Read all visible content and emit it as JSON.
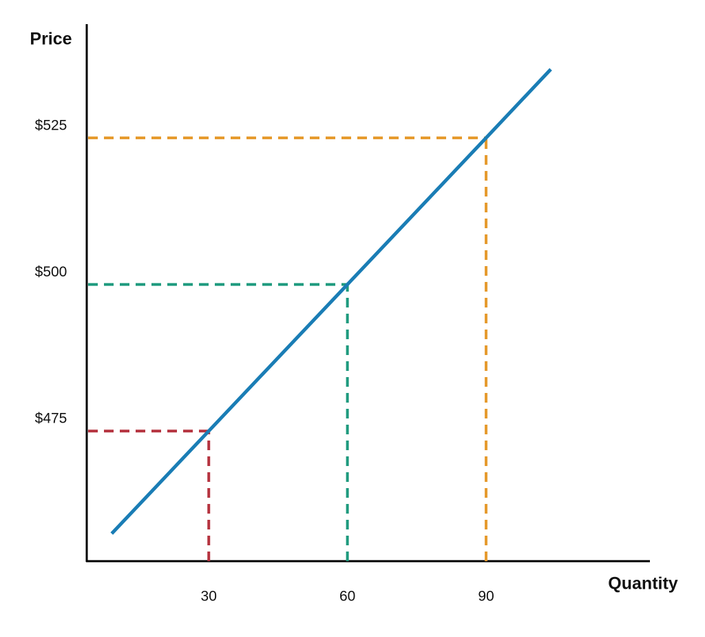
{
  "chart_data": {
    "type": "line",
    "x_axis_title": "Quantity",
    "y_axis_title": "Price",
    "series": [
      {
        "color": "#1a7db5",
        "x": [
          9,
          30,
          60,
          90,
          104
        ],
        "values": [
          457.5,
          475,
          500,
          525,
          536.7
        ]
      }
    ],
    "xlim": [
      3.6,
      125.3
    ],
    "ylim": [
      452.8,
      544.4
    ],
    "xticks": [
      30,
      60,
      90
    ],
    "yticks": [
      {
        "value": 475,
        "label": "$475"
      },
      {
        "value": 500,
        "label": "$500"
      },
      {
        "value": 525,
        "label": "$525"
      }
    ],
    "guide_colors": [
      "#b5333f",
      "#1e9a7e",
      "#e69b2f"
    ]
  }
}
